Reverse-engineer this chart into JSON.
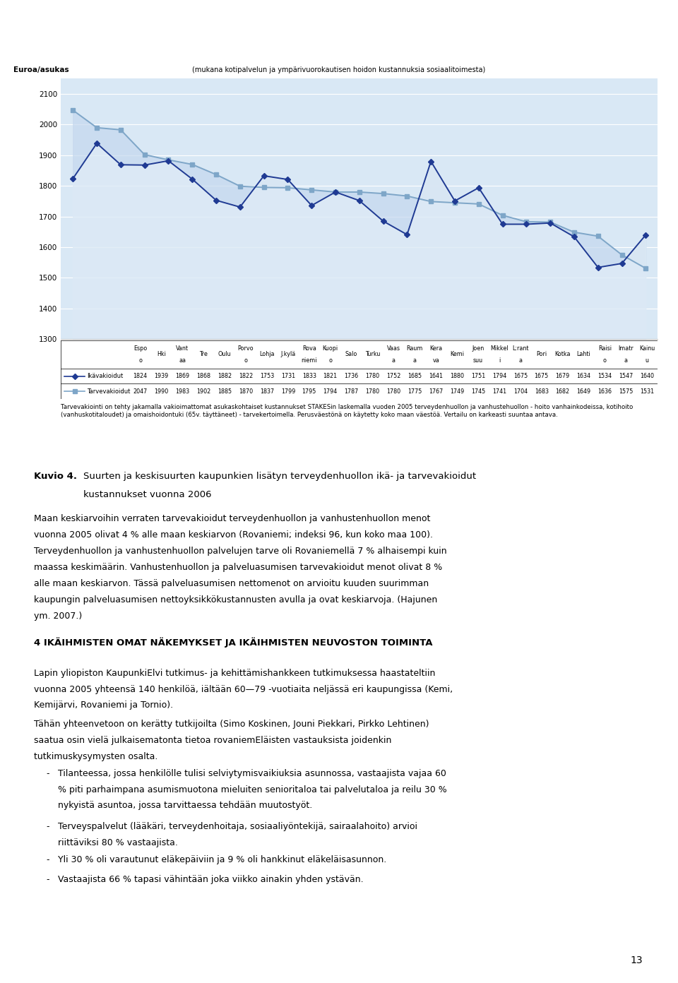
{
  "ylabel": "Euroa/asukas",
  "subtitle": "(mukana kotipalvelun ja ympärivuorokautisen hoidon kustannuksia sosiaalitoimesta)",
  "categories": [
    "Espo\no",
    "Hki",
    "Vant\naa",
    "Tre",
    "Oulu",
    "Porvo\no",
    "Lohja",
    "J.kylä",
    "Rova\nniemi",
    "Kuopi\no",
    "Salo",
    "Turku",
    "Vaas\na",
    "Raum\na",
    "Kera\nva",
    "Kemi",
    "Joen\nsuu",
    "Mikkel\ni",
    "L:rant\na",
    "Pori",
    "Kotka",
    "Lahti",
    "Raisi\no",
    "Imatr\na",
    "Kainu\nu"
  ],
  "ikavakioidut": [
    1824,
    1939,
    1869,
    1868,
    1882,
    1822,
    1753,
    1731,
    1833,
    1821,
    1736,
    1780,
    1752,
    1685,
    1641,
    1880,
    1751,
    1794,
    1675,
    1675,
    1679,
    1634,
    1534,
    1547,
    1640
  ],
  "tarvevakioidut": [
    2047,
    1990,
    1983,
    1902,
    1885,
    1870,
    1837,
    1799,
    1795,
    1794,
    1787,
    1780,
    1780,
    1775,
    1767,
    1749,
    1745,
    1741,
    1704,
    1683,
    1682,
    1649,
    1636,
    1575,
    1531
  ],
  "legend_ika": "Ikävakioidut",
  "legend_tarve": "Tarvevakioidut",
  "ylim_min": 1300,
  "ylim_max": 2150,
  "yticks": [
    1300,
    1400,
    1500,
    1600,
    1700,
    1800,
    1900,
    2000,
    2100
  ],
  "line_color_ika": "#1F3A93",
  "line_color_tarve": "#7EA6C8",
  "fill_color_top": "#C5D8EE",
  "fill_color_bottom": "#DCE9F5",
  "bg_color": "#D9E8F5",
  "grid_color": "#FFFFFF",
  "border_color": "#AAAAAA",
  "note_text": "Tarvevakiointi on tehty jakamalla vakioimattomat asukaskohtaiset kustannukset STAKESin laskemalla vuoden 2005 terveydenhuollon ja vanhustehuollon - hoito vanhainkodeissa, kotihoito (vanhuskotitaloudet) ja omaishoidontuki (65v. täyttäneet) - tarvekertoimella. Perusväestönä on käytetty koko maan väestöä. Vertailu on karkeasti suuntaa antava.",
  "page_number": "13"
}
